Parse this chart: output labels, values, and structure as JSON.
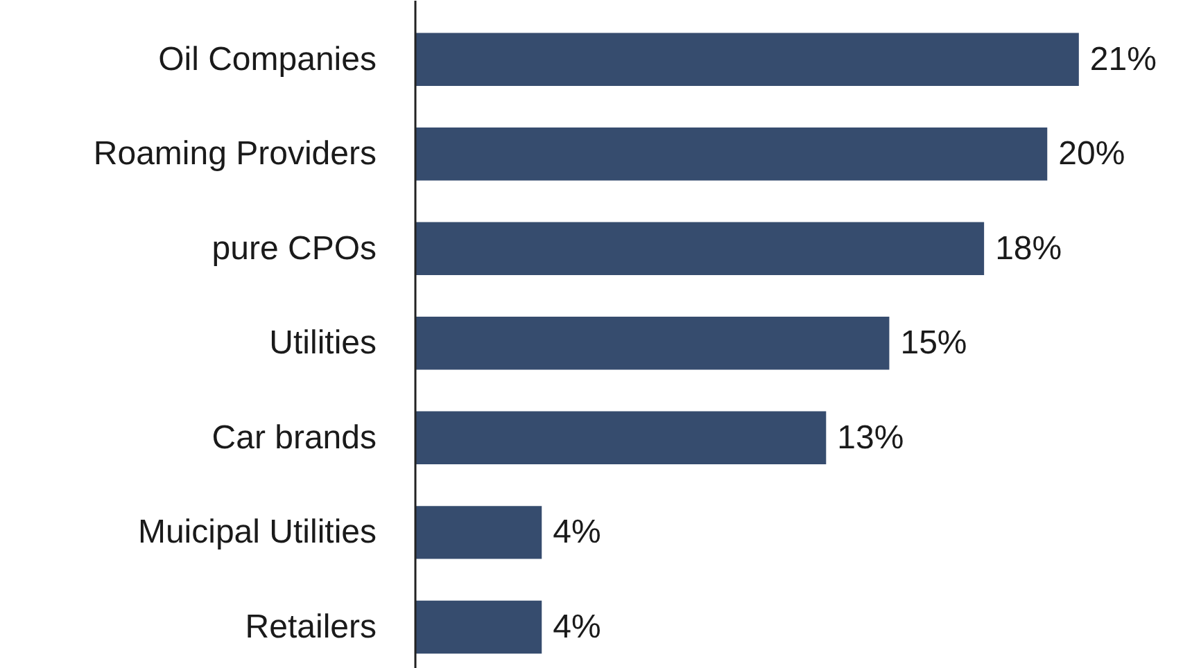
{
  "chart_data": {
    "type": "bar",
    "orientation": "horizontal",
    "categories": [
      "Oil Companies",
      "Roaming Providers",
      "pure CPOs",
      "Utilities",
      "Car brands",
      "Muicipal Utilities",
      "Retailers"
    ],
    "values": [
      21,
      20,
      18,
      15,
      13,
      4,
      4
    ],
    "value_labels": [
      "21%",
      "20%",
      "18%",
      "15%",
      "13%",
      "4%",
      "4%"
    ],
    "color": "#364c6e",
    "grid": false
  }
}
